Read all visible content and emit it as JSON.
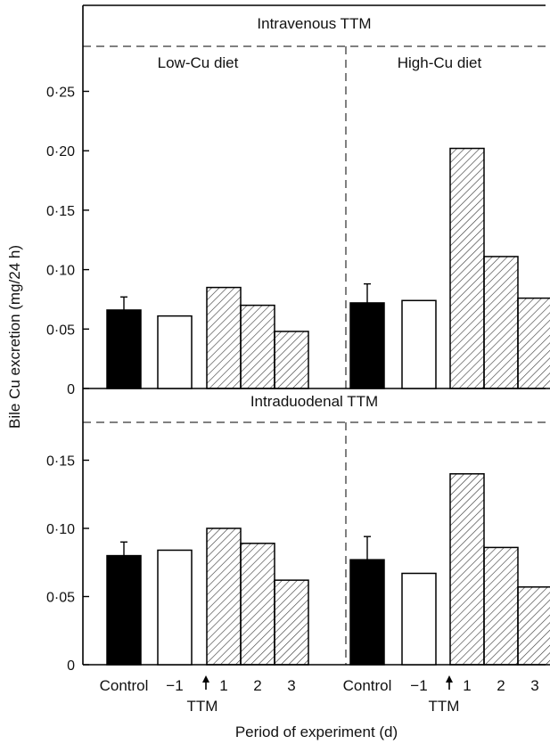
{
  "chart_data": {
    "type": "bar",
    "ylabel": "Bile Cu excretion (mg/24 h)",
    "xlabel": "Period of experiment (d)",
    "x_tick_labels": [
      "Control",
      "−1",
      "1",
      "2",
      "3"
    ],
    "treatment_marker": "TTM",
    "columns": [
      {
        "label": "Low-Cu diet"
      },
      {
        "label": "High-Cu diet"
      }
    ],
    "panels": [
      {
        "title": "Intravenous TTM",
        "ylim": [
          0,
          0.25
        ],
        "yticks": [
          "0",
          "0·05",
          "0·10",
          "0·15",
          "0·20",
          "0·25"
        ],
        "groups": [
          {
            "diet": "Low-Cu diet",
            "categories": [
              "Control",
              "−1",
              "1",
              "2",
              "3"
            ],
            "values": [
              0.066,
              0.061,
              0.085,
              0.07,
              0.048
            ],
            "error": [
              0.011,
              null,
              null,
              null,
              null
            ]
          },
          {
            "diet": "High-Cu diet",
            "categories": [
              "Control",
              "−1",
              "1",
              "2",
              "3"
            ],
            "values": [
              0.072,
              0.074,
              0.202,
              0.111,
              0.076
            ],
            "error": [
              0.016,
              null,
              null,
              null,
              null
            ]
          }
        ]
      },
      {
        "title": "Intraduodenal TTM",
        "ylim": [
          0,
          0.15
        ],
        "yticks": [
          "0",
          "0·05",
          "0·10",
          "0·15"
        ],
        "groups": [
          {
            "diet": "Low-Cu diet",
            "categories": [
              "Control",
              "−1",
              "1",
              "2",
              "3"
            ],
            "values": [
              0.08,
              0.084,
              0.1,
              0.089,
              0.062
            ],
            "error": [
              0.01,
              null,
              null,
              null,
              null
            ]
          },
          {
            "diet": "High-Cu diet",
            "categories": [
              "Control",
              "−1",
              "1",
              "2",
              "3"
            ],
            "values": [
              0.077,
              0.067,
              0.14,
              0.086,
              0.057
            ],
            "error": [
              0.017,
              null,
              null,
              null,
              null
            ]
          }
        ]
      }
    ],
    "bar_styles": [
      "solid",
      "open",
      "hatched",
      "hatched",
      "hatched"
    ],
    "colors": {
      "solid": "#000000",
      "open": "#ffffff",
      "hatch": "#333333"
    }
  }
}
